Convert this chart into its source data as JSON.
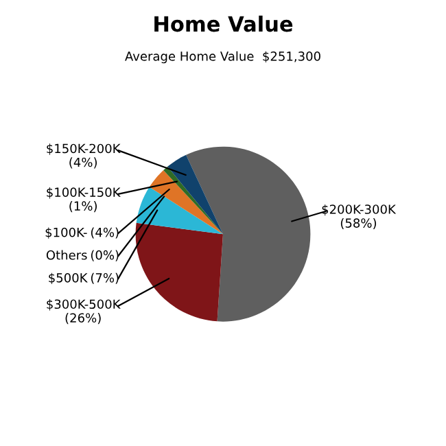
{
  "chart_data": {
    "type": "pie",
    "title": "Home Value",
    "subtitle": "Average Home Value  $251,300",
    "categories": [
      "$200K-300K",
      "$300K-500K",
      "$500K",
      "Others",
      "$100K-",
      "$100K-150K",
      "$150K-200K"
    ],
    "values": [
      58,
      26,
      7,
      0,
      4,
      1,
      4
    ],
    "colors": [
      "#5f5f5f",
      "#7f1518",
      "#2bb7d6",
      "#9a9a9a",
      "#df7426",
      "#2f6b25",
      "#10426c"
    ],
    "value_labels": [
      "(58%)",
      "(26%)",
      "(7%)",
      "(0%)",
      "(4%)",
      "(1%)",
      "(4%)"
    ],
    "legend": false
  }
}
